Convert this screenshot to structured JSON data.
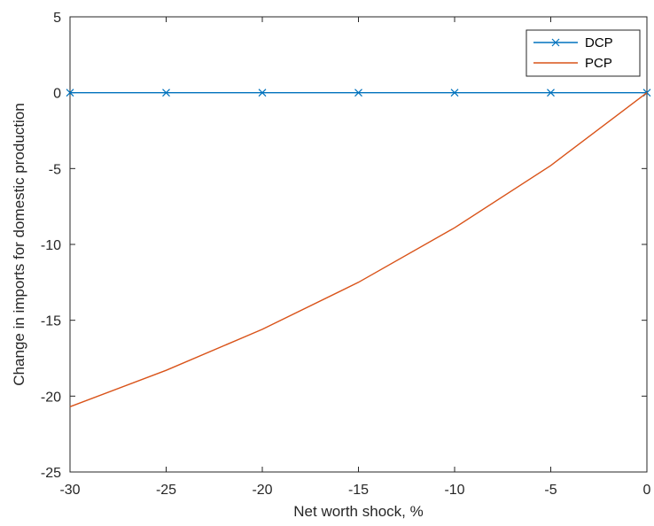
{
  "chart_data": {
    "type": "line",
    "xlabel": "Net worth shock, %",
    "ylabel": "Change in imports for domestic production",
    "xlim": [
      -30,
      0
    ],
    "ylim": [
      -25,
      5
    ],
    "xticks": [
      -30,
      -25,
      -20,
      -15,
      -10,
      -5,
      0
    ],
    "yticks": [
      5,
      0,
      -5,
      -10,
      -15,
      -20,
      -25
    ],
    "grid": false,
    "legend_position": "top-right",
    "series": [
      {
        "name": "DCP",
        "color": "#0072BD",
        "marker": "x",
        "x": [
          -30,
          -25,
          -20,
          -15,
          -10,
          -5,
          0
        ],
        "y": [
          0,
          0,
          0,
          0,
          0,
          0,
          0
        ]
      },
      {
        "name": "PCP",
        "color": "#D95319",
        "marker": "none",
        "x": [
          -30,
          -25,
          -20,
          -15,
          -10,
          -5,
          0
        ],
        "y": [
          -20.7,
          -18.3,
          -15.6,
          -12.5,
          -8.9,
          -4.8,
          0
        ]
      }
    ]
  }
}
